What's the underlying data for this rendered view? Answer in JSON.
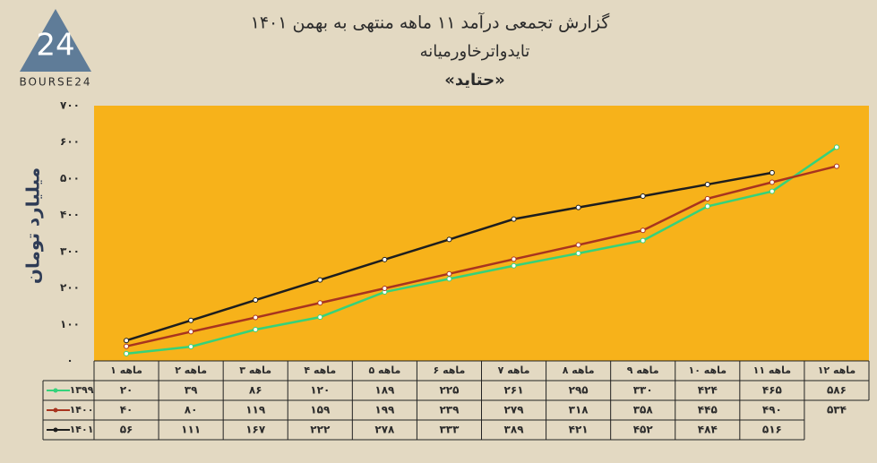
{
  "logo": {
    "mark": "24",
    "text": "BOURSE24"
  },
  "chart_data": {
    "type": "line",
    "title": "گزارش تجمعی درآمد ۱۱ ماهه منتهی به بهمن ۱۴۰۱",
    "subtitle": "تایدواترخاورمیانه",
    "symbol": "«حتاید»",
    "y_label": "میلیارد تومان",
    "background": "#f7b21a",
    "grid": false,
    "categories": [
      "۱ ماهه",
      "۲ ماهه",
      "۳ ماهه",
      "۴ ماهه",
      "۵ ماهه",
      "۶ ماهه",
      "۷ ماهه",
      "۸ ماهه",
      "۹ ماهه",
      "۱۰ ماهه",
      "۱۱ ماهه",
      "۱۲ ماهه"
    ],
    "ylim": [
      0,
      700
    ],
    "yticks": [
      {
        "value": 0,
        "label": "۰"
      },
      {
        "value": 100,
        "label": "۱۰۰"
      },
      {
        "value": 200,
        "label": "۲۰۰"
      },
      {
        "value": 300,
        "label": "۳۰۰"
      },
      {
        "value": 400,
        "label": "۴۰۰"
      },
      {
        "value": 500,
        "label": "۵۰۰"
      },
      {
        "value": 600,
        "label": "۶۰۰"
      },
      {
        "value": 700,
        "label": "۷۰۰"
      }
    ],
    "series": [
      {
        "name": "۱۳۹۹",
        "color": "#35d27a",
        "values": [
          20,
          39,
          86,
          120,
          189,
          225,
          261,
          295,
          330,
          424,
          465,
          586
        ],
        "value_labels": [
          "۲۰",
          "۳۹",
          "۸۶",
          "۱۲۰",
          "۱۸۹",
          "۲۲۵",
          "۲۶۱",
          "۲۹۵",
          "۳۳۰",
          "۴۲۴",
          "۴۶۵",
          "۵۸۶"
        ]
      },
      {
        "name": "۱۴۰۰",
        "color": "#a8341f",
        "values": [
          40,
          80,
          119,
          159,
          199,
          239,
          279,
          318,
          358,
          445,
          490,
          534
        ],
        "value_labels": [
          "۴۰",
          "۸۰",
          "۱۱۹",
          "۱۵۹",
          "۱۹۹",
          "۲۳۹",
          "۲۷۹",
          "۳۱۸",
          "۳۵۸",
          "۴۴۵",
          "۴۹۰",
          "۵۳۴"
        ]
      },
      {
        "name": "۱۴۰۱",
        "color": "#1e1e1e",
        "values": [
          56,
          111,
          167,
          222,
          278,
          333,
          389,
          421,
          452,
          484,
          516,
          null
        ],
        "value_labels": [
          "۵۶",
          "۱۱۱",
          "۱۶۷",
          "۲۲۲",
          "۲۷۸",
          "۳۳۳",
          "۳۸۹",
          "۴۲۱",
          "۴۵۲",
          "۴۸۴",
          "۵۱۶",
          null
        ]
      }
    ]
  }
}
